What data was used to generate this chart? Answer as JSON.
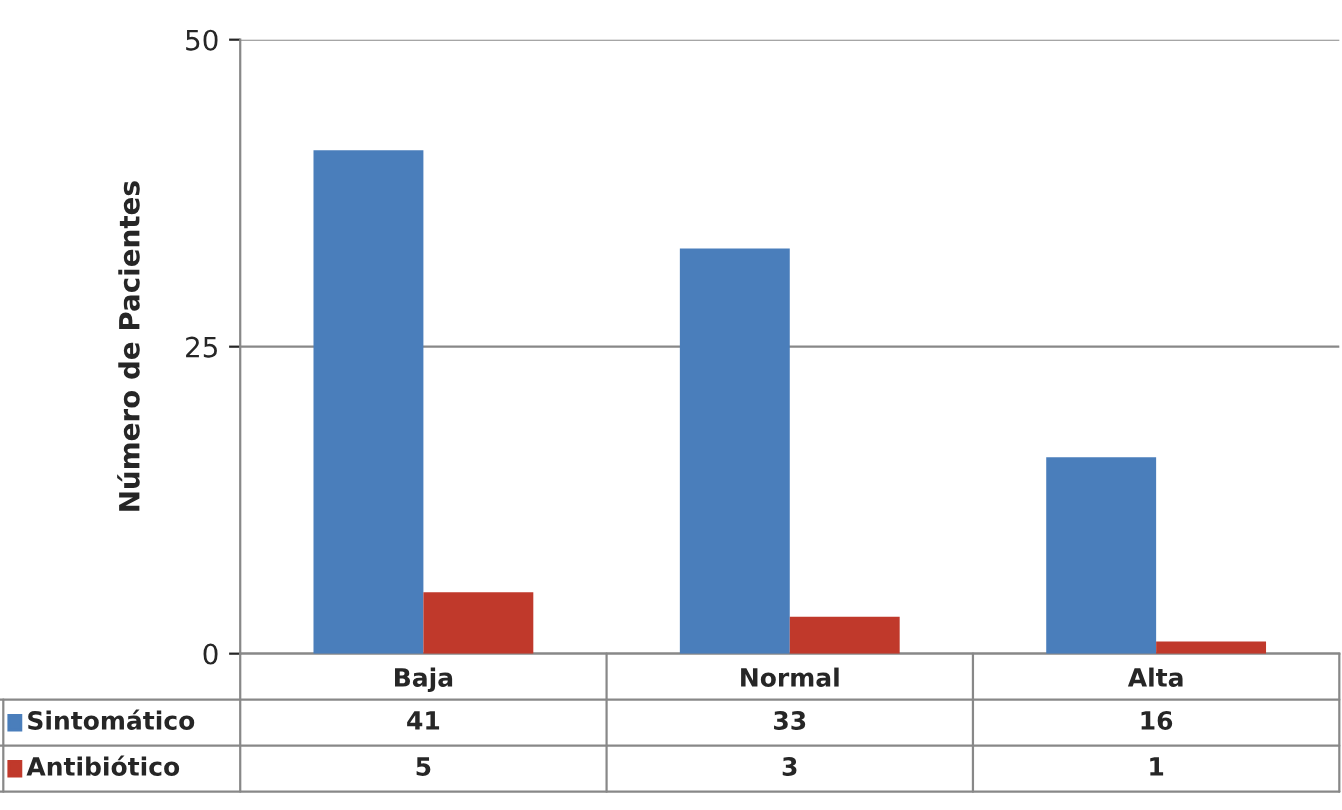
{
  "chart_data": {
    "type": "bar",
    "ylabel": "Número de Pacientes",
    "categories": [
      "Baja",
      "Normal",
      "Alta"
    ],
    "series": [
      {
        "name": "Sintomático",
        "color": "#4a7ebb",
        "values": [
          41,
          33,
          16
        ]
      },
      {
        "name": "Antibiótico",
        "color": "#c0392b",
        "values": [
          5,
          3,
          1
        ]
      }
    ],
    "ylim": [
      0,
      50
    ],
    "yticks": [
      0,
      25,
      50
    ],
    "grid": "y",
    "data_labels": true,
    "legend": "bottom"
  }
}
